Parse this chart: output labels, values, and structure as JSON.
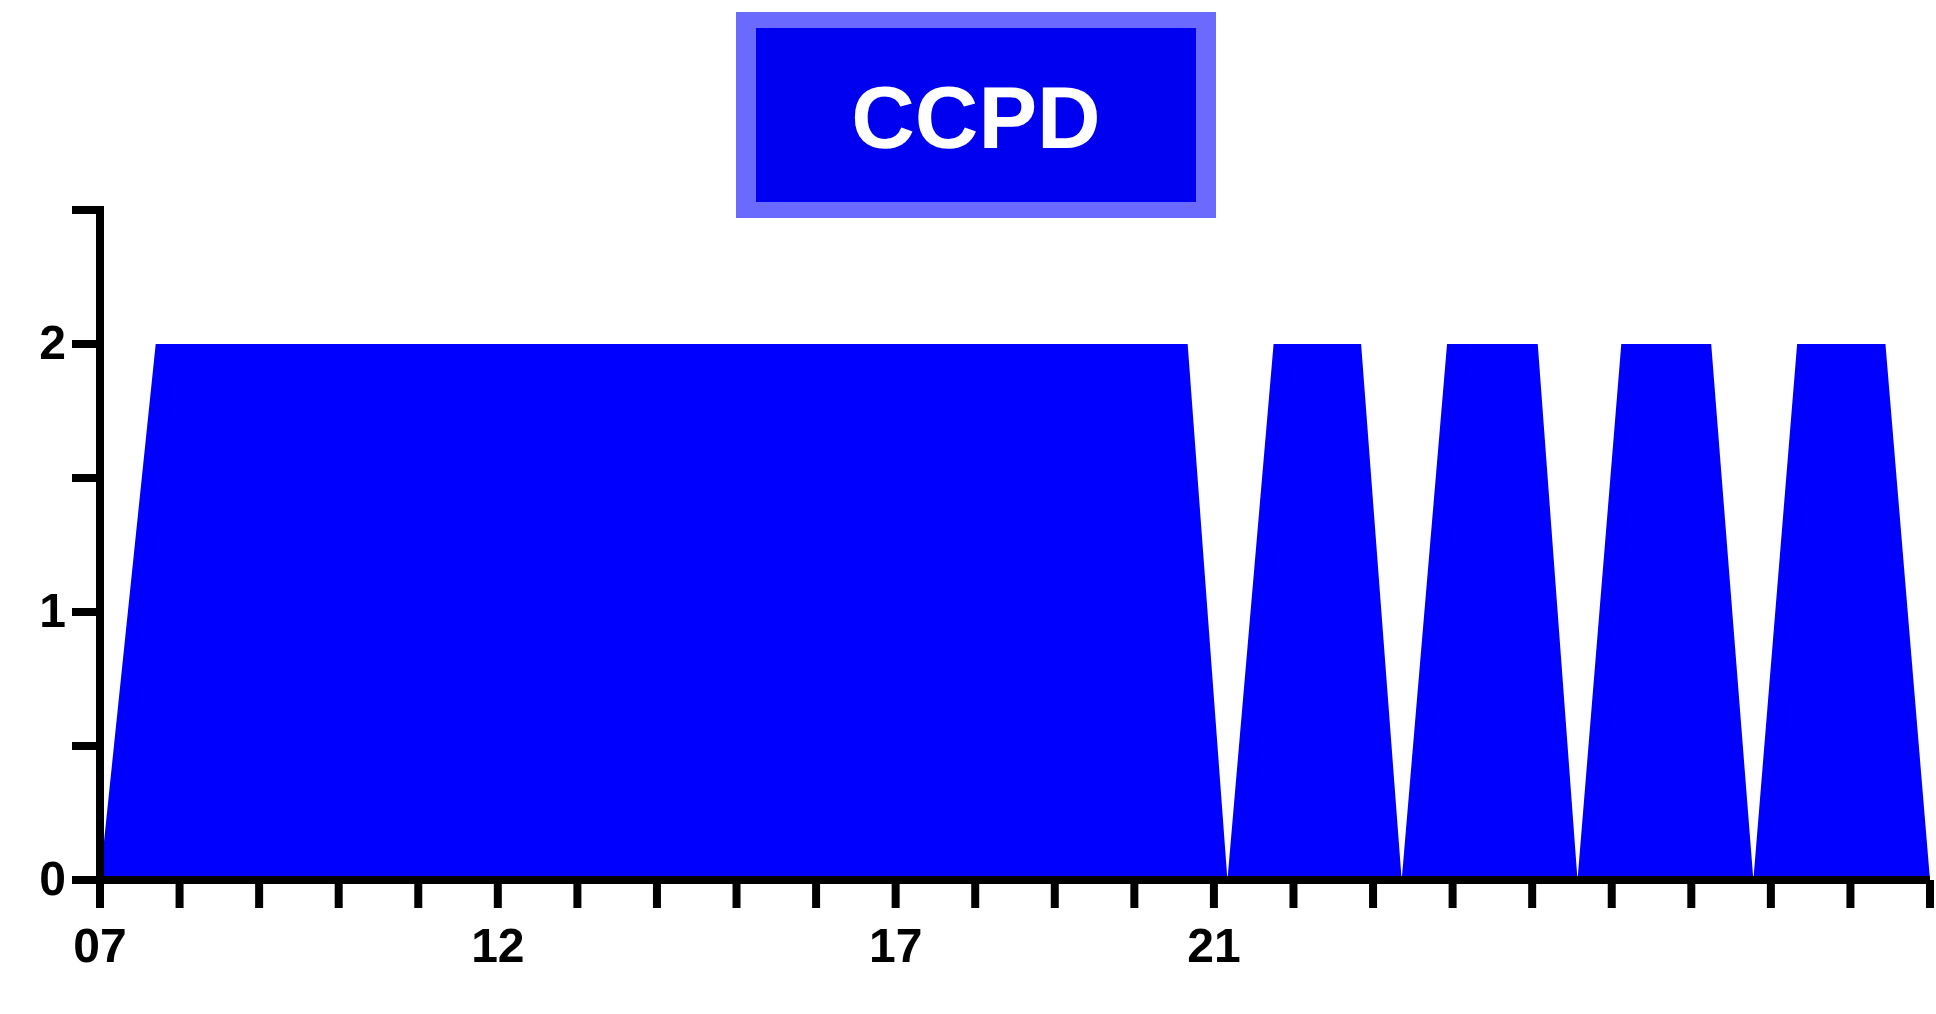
{
  "chart_data": {
    "type": "area",
    "title": "CCPD",
    "x": [
      7,
      7.7,
      20.67,
      21.17,
      21.75,
      22.85,
      23.36,
      23.93,
      25.07,
      25.57,
      26.12,
      27.25,
      27.78,
      28.33,
      29.44,
      30
    ],
    "series": [
      {
        "color": "#0000ff",
        "values": [
          0,
          2,
          2,
          0,
          2,
          2,
          0,
          2,
          2,
          0,
          2,
          2,
          0,
          2,
          2,
          0
        ]
      }
    ],
    "xlim": [
      7,
      30
    ],
    "xticks": [
      {
        "value": 7,
        "label": "07"
      },
      {
        "value": 8,
        "label": null
      },
      {
        "value": 9,
        "label": null
      },
      {
        "value": 10,
        "label": null
      },
      {
        "value": 11,
        "label": null
      },
      {
        "value": 12,
        "label": "12"
      },
      {
        "value": 13,
        "label": null
      },
      {
        "value": 14,
        "label": null
      },
      {
        "value": 15,
        "label": null
      },
      {
        "value": 16,
        "label": null
      },
      {
        "value": 17,
        "label": "17"
      },
      {
        "value": 18,
        "label": null
      },
      {
        "value": 19,
        "label": null
      },
      {
        "value": 20,
        "label": null
      },
      {
        "value": 21,
        "label": "21"
      },
      {
        "value": 22,
        "label": null
      },
      {
        "value": 23,
        "label": null
      },
      {
        "value": 24,
        "label": null
      },
      {
        "value": 25,
        "label": null
      },
      {
        "value": 26,
        "label": null
      },
      {
        "value": 27,
        "label": null
      },
      {
        "value": 28,
        "label": null
      },
      {
        "value": 29,
        "label": null
      },
      {
        "value": 30,
        "label": null
      }
    ],
    "ylim": [
      0,
      2.5
    ],
    "yticks": [
      0,
      {
        "value": 0.5,
        "label": null
      },
      1,
      {
        "value": 1.5,
        "label": null
      },
      2,
      {
        "value": 2.5,
        "label": null
      }
    ]
  }
}
